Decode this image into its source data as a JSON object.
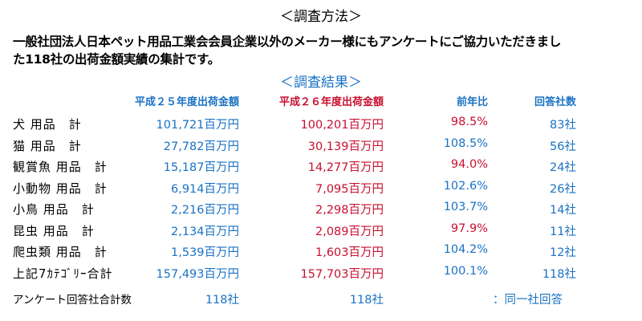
{
  "method": {
    "heading": "＜調査方法＞",
    "line1": "一般社団法人日本ペット用品工業会会員企業以外のメーカー様にもアンケートにご協力いただきまし",
    "line2": "た118社の出荷金額実績の集計です。"
  },
  "results": {
    "heading": "＜調査結果＞",
    "columns": {
      "h24": "平成２５年度出荷金額",
      "h26": "平成２６年度出荷金額",
      "yoy": "前年比",
      "count": "回答社数"
    },
    "rows": [
      {
        "category": "犬 用品　計",
        "h24": "101,721百万円",
        "h26": "100,201百万円",
        "yoy": "98.5%",
        "count": "83社"
      },
      {
        "category": "猫 用品　計",
        "h24": "27,782百万円",
        "h26": "30,139百万円",
        "yoy": "108.5%",
        "count": "56社"
      },
      {
        "category": "観賞魚 用品　計",
        "h24": "15,187百万円",
        "h26": "14,277百万円",
        "yoy": "94.0%",
        "count": "24社"
      },
      {
        "category": "小動物 用品　計",
        "h24": "6,914百万円",
        "h26": "7,095百万円",
        "yoy": "102.6%",
        "count": "26社"
      },
      {
        "category": "小鳥 用品　計",
        "h24": "2,216百万円",
        "h26": "2,298百万円",
        "yoy": "103.7%",
        "count": "14社"
      },
      {
        "category": "昆虫 用品　計",
        "h24": "2,134百万円",
        "h26": "2,089百万円",
        "yoy": "97.9%",
        "count": "11社"
      },
      {
        "category": "爬虫類 用品　計",
        "h24": "1,539百万円",
        "h26": "1,603百万円",
        "yoy": "104.2%",
        "count": "12社"
      },
      {
        "category": "上記7ｶﾃｺﾞﾘｰ合計",
        "h24": "157,493百万円",
        "h26": "157,703百万円",
        "yoy": "100.1%",
        "count": "118社"
      }
    ],
    "footer": {
      "label": "アンケート回答社合計数",
      "h24": "118社",
      "h26": "118社",
      "note": "：同一社回答"
    }
  },
  "colors": {
    "blue": "#1a72c4",
    "red": "#c8102e"
  }
}
